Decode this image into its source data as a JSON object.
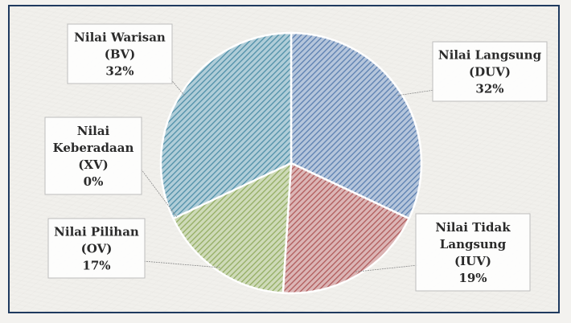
{
  "chart_data": {
    "type": "pie",
    "slices": [
      {
        "label_lines": [
          "Nilai Langsung",
          "(DUV)"
        ],
        "percent_label": "32%",
        "value": 32,
        "color": "#5a7fb0"
      },
      {
        "label_lines": [
          "Nilai Tidak",
          "Langsung",
          "(IUV)"
        ],
        "percent_label": "19%",
        "value": 19,
        "color": "#b05a5a"
      },
      {
        "label_lines": [
          "Nilai Pilihan",
          "(OV)"
        ],
        "percent_label": "17%",
        "value": 17,
        "color": "#93ad62"
      },
      {
        "label_lines": [
          "Nilai",
          "Keberadaan",
          "(XV)"
        ],
        "percent_label": "0%",
        "value": 0,
        "color": "#8064a2"
      },
      {
        "label_lines": [
          "Nilai Warisan",
          "(BV)"
        ],
        "percent_label": "32%",
        "value": 32,
        "color": "#4f8fa8"
      }
    ]
  }
}
